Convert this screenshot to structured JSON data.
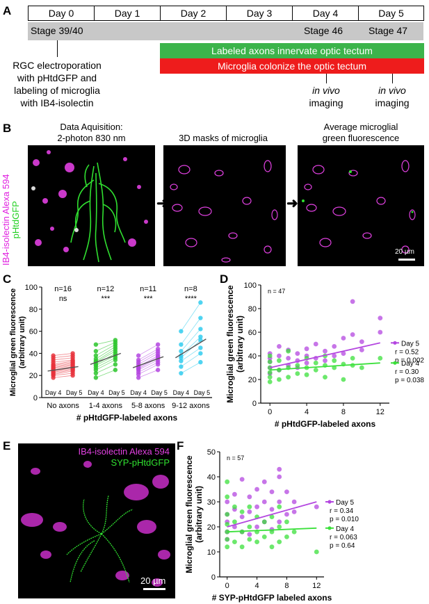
{
  "panel_labels": {
    "a": "A",
    "b": "B",
    "c": "C",
    "d": "D",
    "e": "E",
    "f": "F"
  },
  "timeline": {
    "days": [
      "Day 0",
      "Day 1",
      "Day 2",
      "Day 3",
      "Day 4",
      "Day 5"
    ],
    "stages": [
      "Stage 39/40",
      "Stage 46",
      "Stage 47"
    ],
    "events": [
      "Labeled axons innervate optic tectum",
      "Microglia colonize the optic tectum"
    ],
    "notes": {
      "rgc": [
        "RGC electroporation",
        "with pHtdGFP and",
        "labeling of microglia",
        "with IB4-isolectin"
      ],
      "imaging_day4": [
        "in vivo",
        "imaging"
      ],
      "imaging_day5": [
        "in vivo",
        "imaging"
      ]
    },
    "colors": {
      "stage_bar": "#c8c8c8",
      "axon_bar": "#3cb44b",
      "microglia_bar": "#ee1c1c"
    }
  },
  "panel_b": {
    "titles": [
      [
        "Data Aquisition:",
        "2-photon 830 nm"
      ],
      [
        "3D masks of microglia"
      ],
      [
        "Average microglial",
        "green fluorescence"
      ]
    ],
    "side_label_magenta": "IB4-isolectin Alexa 594",
    "side_label_green": "pHtdGFP",
    "scale": "20 µm"
  },
  "panel_e": {
    "label_magenta": "IB4-isolectin Alexa 594",
    "label_green": "SYP-pHtdGFP",
    "scale": "20 µm"
  },
  "chart_data": [
    {
      "panel": "C",
      "type": "scatter",
      "ylabel": "Microglial green fluorescence (arbitrary unit)",
      "xlabel": "# pHtdGFP-labeled axons",
      "ylim": [
        0,
        100
      ],
      "yticks": [
        0,
        20,
        40,
        60,
        80,
        100
      ],
      "groups": [
        {
          "name": "No axons",
          "n": "n=16",
          "sig": "ns",
          "color": "#e8323c",
          "mean_day4": 24,
          "mean_day5": 28,
          "day4": [
            18,
            20,
            21,
            22,
            23,
            24,
            25,
            26,
            27,
            28,
            29,
            30,
            32,
            34,
            36,
            38
          ],
          "day5": [
            20,
            22,
            24,
            25,
            26,
            27,
            28,
            29,
            30,
            31,
            32,
            33,
            34,
            36,
            38,
            40
          ]
        },
        {
          "name": "1-4 axons",
          "n": "n=12",
          "sig": "***",
          "color": "#2dc52d",
          "mean_day4": 30,
          "mean_day5": 40,
          "day4": [
            18,
            22,
            25,
            27,
            29,
            30,
            32,
            33,
            35,
            38,
            42,
            48
          ],
          "day5": [
            25,
            30,
            34,
            36,
            38,
            40,
            42,
            44,
            46,
            48,
            50,
            52
          ]
        },
        {
          "name": "5-8 axons",
          "n": "n=11",
          "sig": "***",
          "color": "#b447e0",
          "mean_day4": 27,
          "mean_day5": 37,
          "day4": [
            18,
            21,
            23,
            25,
            26,
            27,
            28,
            30,
            32,
            34,
            38
          ],
          "day5": [
            25,
            30,
            32,
            34,
            36,
            37,
            38,
            40,
            42,
            44,
            48
          ]
        },
        {
          "name": "9-12 axons",
          "n": "n=8",
          "sig": "****",
          "color": "#33ccee",
          "mean_day4": 36,
          "mean_day5": 53,
          "day4": [
            22,
            28,
            33,
            36,
            38,
            42,
            48,
            60
          ],
          "day5": [
            32,
            40,
            45,
            52,
            55,
            62,
            72,
            86
          ]
        }
      ],
      "day_labels": [
        "Day 4",
        "Day 5"
      ]
    },
    {
      "panel": "D",
      "type": "scatter",
      "n_label": "n = 47",
      "ylabel": "Microglial green fluorescence (arbitrary unit)",
      "xlabel": "# pHtdGFP-labeled axons",
      "xlim": [
        -1,
        13
      ],
      "ylim": [
        0,
        100
      ],
      "xticks": [
        0,
        4,
        8,
        12
      ],
      "yticks": [
        0,
        20,
        40,
        60,
        80,
        100
      ],
      "series": [
        {
          "name": "Day 5",
          "r": "r = 0.52",
          "p": "p = 0.002",
          "color": "#b447e0",
          "fit": [
            [
              0,
              30
            ],
            [
              12,
              51
            ]
          ],
          "points": [
            [
              0,
              25
            ],
            [
              0,
              30
            ],
            [
              0,
              35
            ],
            [
              0,
              38
            ],
            [
              0,
              42
            ],
            [
              1,
              28
            ],
            [
              1,
              40
            ],
            [
              1,
              48
            ],
            [
              2,
              32
            ],
            [
              2,
              38
            ],
            [
              2,
              45
            ],
            [
              3,
              30
            ],
            [
              3,
              36
            ],
            [
              3,
              42
            ],
            [
              4,
              34
            ],
            [
              4,
              40
            ],
            [
              4,
              46
            ],
            [
              5,
              38
            ],
            [
              5,
              50
            ],
            [
              6,
              36
            ],
            [
              6,
              44
            ],
            [
              7,
              40
            ],
            [
              7,
              48
            ],
            [
              8,
              42
            ],
            [
              8,
              55
            ],
            [
              9,
              58
            ],
            [
              9,
              86
            ],
            [
              10,
              45
            ],
            [
              10,
              52
            ],
            [
              12,
              60
            ],
            [
              12,
              72
            ]
          ]
        },
        {
          "name": "Day 4",
          "r": "r = 0.30",
          "p": "p = 0.038",
          "color": "#3be03b",
          "fit": [
            [
              0,
              28
            ],
            [
              12,
              34
            ]
          ],
          "points": [
            [
              0,
              18
            ],
            [
              0,
              22
            ],
            [
              0,
              26
            ],
            [
              0,
              30
            ],
            [
              0,
              35
            ],
            [
              0,
              40
            ],
            [
              1,
              20
            ],
            [
              1,
              28
            ],
            [
              1,
              36
            ],
            [
              2,
              22
            ],
            [
              2,
              30
            ],
            [
              2,
              44
            ],
            [
              3,
              25
            ],
            [
              3,
              32
            ],
            [
              4,
              24
            ],
            [
              4,
              30
            ],
            [
              4,
              38
            ],
            [
              5,
              28
            ],
            [
              5,
              34
            ],
            [
              6,
              22
            ],
            [
              6,
              32
            ],
            [
              6,
              40
            ],
            [
              7,
              30
            ],
            [
              7,
              36
            ],
            [
              8,
              20
            ],
            [
              8,
              33
            ],
            [
              9,
              32
            ],
            [
              9,
              38
            ],
            [
              10,
              30
            ],
            [
              12,
              38
            ]
          ]
        }
      ]
    },
    {
      "panel": "F",
      "type": "scatter",
      "n_label": "n = 57",
      "ylabel": "Microglial green fluorescence (arbitrary unit)",
      "xlabel": "# SYP-pHtdGFP labeled axons",
      "xlim": [
        -1,
        13
      ],
      "ylim": [
        0,
        50
      ],
      "xticks": [
        0,
        4,
        8,
        12
      ],
      "yticks": [
        0,
        10,
        20,
        30,
        40,
        50
      ],
      "series": [
        {
          "name": "Day 5",
          "r": "r = 0.34",
          "p": "p = 0.010",
          "color": "#b447e0",
          "fit": [
            [
              0,
              20
            ],
            [
              12,
              30
            ]
          ],
          "points": [
            [
              0,
              15
            ],
            [
              0,
              18
            ],
            [
              0,
              22
            ],
            [
              0,
              25
            ],
            [
              0,
              30
            ],
            [
              1,
              20
            ],
            [
              1,
              27
            ],
            [
              1,
              33
            ],
            [
              2,
              18
            ],
            [
              2,
              24
            ],
            [
              2,
              39
            ],
            [
              3,
              17
            ],
            [
              3,
              26
            ],
            [
              3,
              32
            ],
            [
              4,
              20
            ],
            [
              4,
              28
            ],
            [
              4,
              35
            ],
            [
              5,
              22
            ],
            [
              5,
              30
            ],
            [
              5,
              38
            ],
            [
              6,
              19
            ],
            [
              6,
              27
            ],
            [
              6,
              34
            ],
            [
              7,
              22
            ],
            [
              7,
              30
            ],
            [
              7,
              40
            ],
            [
              7,
              43
            ],
            [
              8,
              25
            ],
            [
              8,
              34
            ],
            [
              9,
              26
            ],
            [
              9,
              30
            ],
            [
              12,
              28
            ]
          ]
        },
        {
          "name": "Day 4",
          "r": "r = 0.063",
          "p": "p = 0.64",
          "color": "#3be03b",
          "fit": [
            [
              0,
              18
            ],
            [
              12,
              19.5
            ]
          ],
          "points": [
            [
              0,
              12
            ],
            [
              0,
              15
            ],
            [
              0,
              18
            ],
            [
              0,
              21
            ],
            [
              0,
              25
            ],
            [
              0,
              32
            ],
            [
              0,
              38
            ],
            [
              1,
              14
            ],
            [
              1,
              22
            ],
            [
              1,
              28
            ],
            [
              2,
              12
            ],
            [
              2,
              18
            ],
            [
              2,
              26
            ],
            [
              3,
              15
            ],
            [
              3,
              20
            ],
            [
              3,
              28
            ],
            [
              4,
              14
            ],
            [
              4,
              18
            ],
            [
              4,
              24
            ],
            [
              5,
              16
            ],
            [
              5,
              22
            ],
            [
              6,
              12
            ],
            [
              6,
              18
            ],
            [
              6,
              24
            ],
            [
              7,
              14
            ],
            [
              7,
              20
            ],
            [
              7,
              28
            ],
            [
              8,
              16
            ],
            [
              8,
              22
            ],
            [
              9,
              18
            ],
            [
              12,
              10
            ]
          ]
        }
      ]
    }
  ]
}
